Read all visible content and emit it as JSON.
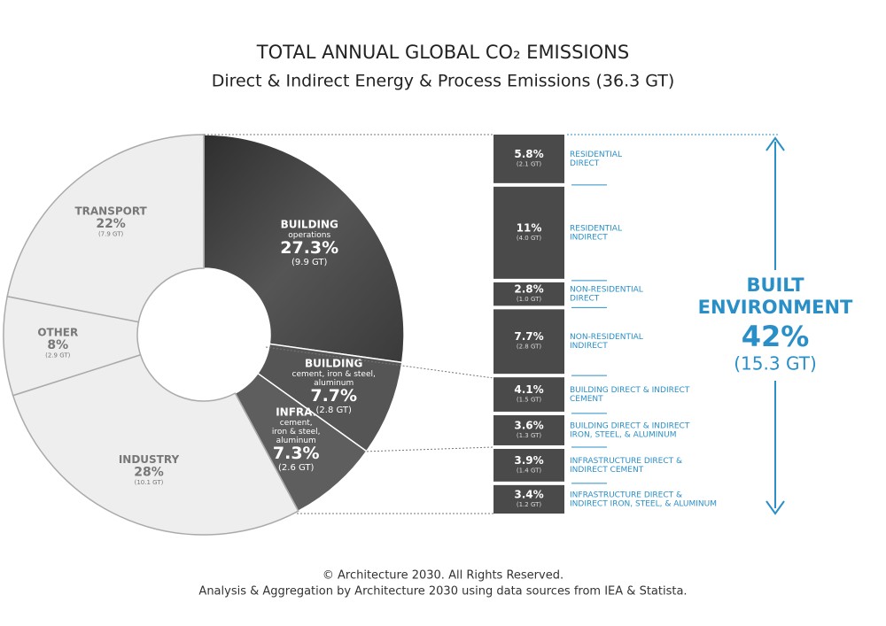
{
  "chart_data": {
    "type": "donut",
    "title": "TOTAL ANNUAL GLOBAL CO₂ EMISSIONS",
    "subtitle": "Direct & Indirect Energy & Process Emissions (36.3 GT)",
    "segments": {
      "names": [
        "BUILDING",
        "BUILDING",
        "INFRA.",
        "INDUSTRY",
        "OTHER",
        "TRANSPORT"
      ],
      "sublines": [
        [
          "operations"
        ],
        [
          "cement, iron & steel,",
          "aluminum"
        ],
        [
          "cement,",
          "iron & steel,",
          "aluminum"
        ],
        [],
        [],
        []
      ],
      "values": [
        27.3,
        7.7,
        7.3,
        28,
        8,
        22
      ],
      "value_labels": [
        "27.3%",
        "7.7%",
        "7.3%",
        "28%",
        "8%",
        "22%"
      ],
      "amounts": [
        9.9,
        2.8,
        2.6,
        10.1,
        2.9,
        7.9
      ],
      "amount_labels": [
        "(9.9 GT)",
        "(2.8 GT)",
        "(2.6 GT)",
        "(10.1 GT)",
        "(2.9 GT)",
        "(7.9 GT)"
      ],
      "colors": [
        "#3c3c3c",
        "#555555",
        "#5e5e5e",
        "#eeeeee",
        "#eeeeee",
        "#eeeeee"
      ]
    },
    "breakdown": {
      "labels": [
        [
          "RESIDENTIAL",
          "DIRECT"
        ],
        [
          "RESIDENTIAL",
          "INDIRECT"
        ],
        [
          "NON-RESIDENTIAL",
          "DIRECT"
        ],
        [
          "NON-RESIDENTIAL",
          "INDIRECT"
        ],
        [
          "BUILDING DIRECT & INDIRECT",
          "CEMENT"
        ],
        [
          "BUILDING DIRECT & INDIRECT",
          "IRON, STEEL, & ALUMINUM"
        ],
        [
          "INFRASTRUCTURE DIRECT &",
          "INDIRECT CEMENT"
        ],
        [
          "INFRASTRUCTURE DIRECT &",
          "INDIRECT IRON, STEEL, & ALUMINUM"
        ]
      ],
      "values": [
        5.8,
        11,
        2.8,
        7.7,
        4.1,
        3.6,
        3.9,
        3.4
      ],
      "value_labels": [
        "5.8%",
        "11%",
        "2.8%",
        "7.7%",
        "4.1%",
        "3.6%",
        "3.9%",
        "3.4%"
      ],
      "amounts": [
        2.1,
        4.0,
        1.0,
        2.8,
        1.5,
        1.3,
        1.4,
        1.2
      ],
      "amount_labels": [
        "(2.1 GT)",
        "(4.0 GT)",
        "(1.0 GT)",
        "(2.8 GT)",
        "(1.5 GT)",
        "(1.3 GT)",
        "(1.4 GT)",
        "(1.2 GT)"
      ],
      "color": "#4a4a4a",
      "label_color": "#2a8fc7"
    },
    "total": {
      "lines": [
        "BUILT",
        "ENVIRONMENT"
      ],
      "value": 42,
      "value_label": "42%",
      "amount": 15.3,
      "amount_label": "(15.3 GT)",
      "color": "#2a8fc7"
    },
    "footer": [
      "© Architecture 2030. All Rights Reserved.",
      "Analysis & Aggregation by Architecture 2030 using data sources from IEA & Statista."
    ]
  }
}
